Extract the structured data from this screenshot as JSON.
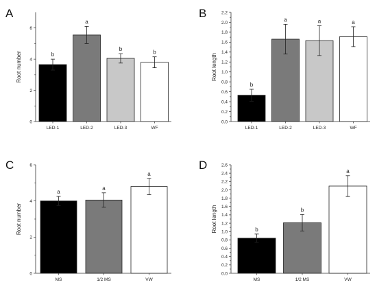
{
  "chart_data": [
    {
      "panel": "A",
      "type": "bar",
      "ylabel": "Root number",
      "ylim": [
        0,
        7
      ],
      "yticks": [
        0,
        2,
        4,
        6
      ],
      "categories": [
        "LED-1",
        "LED-2",
        "LED-3",
        "WF"
      ],
      "values": [
        3.65,
        5.55,
        4.05,
        3.8
      ],
      "errors": [
        0.35,
        0.55,
        0.3,
        0.35
      ],
      "significance": [
        "b",
        "a",
        "b",
        "b"
      ],
      "colors": [
        "#000000",
        "#7a7a7a",
        "#c8c8c8",
        "#ffffff"
      ]
    },
    {
      "panel": "B",
      "type": "bar",
      "ylabel": "Root length",
      "ylim": [
        0,
        2.2
      ],
      "yticks": [
        0,
        0.2,
        0.4,
        0.6,
        0.8,
        1.0,
        1.2,
        1.4,
        1.6,
        1.8,
        2.0,
        2.2
      ],
      "ytick_labels": [
        "0.0",
        "0.2",
        "0.4",
        "0.6",
        "0.8",
        "1.0",
        "1.2",
        "1.4",
        "1.6",
        "1.8",
        "2.0",
        "2.2"
      ],
      "categories": [
        "LED-1",
        "LED-2",
        "LED-3",
        "WF"
      ],
      "values": [
        0.53,
        1.66,
        1.63,
        1.71
      ],
      "errors": [
        0.12,
        0.3,
        0.3,
        0.2
      ],
      "significance": [
        "b",
        "a",
        "a",
        "a"
      ],
      "colors": [
        "#000000",
        "#7a7a7a",
        "#c8c8c8",
        "#ffffff"
      ]
    },
    {
      "panel": "C",
      "type": "bar",
      "ylabel": "Root number",
      "ylim": [
        0,
        6
      ],
      "yticks": [
        0,
        2,
        4,
        6
      ],
      "categories": [
        "MS",
        "1/2 MS",
        "VW"
      ],
      "values": [
        4.0,
        4.05,
        4.8
      ],
      "errors": [
        0.25,
        0.4,
        0.45
      ],
      "significance": [
        "a",
        "a",
        "a"
      ],
      "colors": [
        "#000000",
        "#7a7a7a",
        "#ffffff"
      ]
    },
    {
      "panel": "D",
      "type": "bar",
      "ylabel": "Root length",
      "ylim": [
        0,
        2.6
      ],
      "yticks": [
        0,
        0.2,
        0.4,
        0.6,
        0.8,
        1.0,
        1.2,
        1.4,
        1.6,
        1.8,
        2.0,
        2.2,
        2.4,
        2.6
      ],
      "ytick_labels": [
        "0.0",
        "0.2",
        "0.4",
        "0.6",
        "0.8",
        "1.0",
        "1.2",
        "1.4",
        "1.6",
        "1.8",
        "2.0",
        "2.2",
        "2.4",
        "2.6"
      ],
      "categories": [
        "MS",
        "1/2 MS",
        "VW"
      ],
      "values": [
        0.84,
        1.21,
        2.09
      ],
      "errors": [
        0.1,
        0.2,
        0.25
      ],
      "significance": [
        "b",
        "b",
        "a"
      ],
      "colors": [
        "#000000",
        "#7a7a7a",
        "#ffffff"
      ]
    }
  ]
}
